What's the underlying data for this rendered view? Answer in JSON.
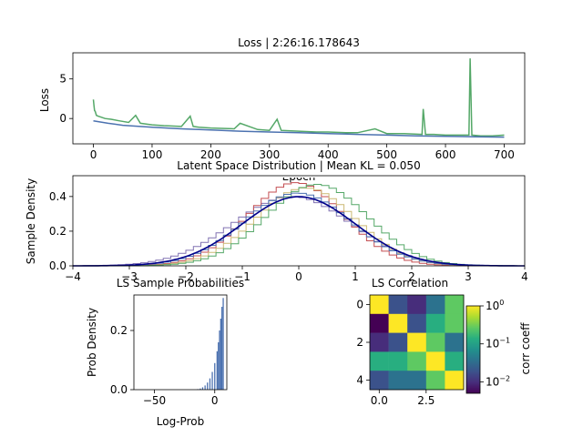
{
  "chart_data": [
    {
      "id": "loss",
      "type": "line",
      "title": "Loss | 2:26:16.178643",
      "xlabel": "Epoch",
      "ylabel": "Loss",
      "xlim": [
        -35,
        735
      ],
      "ylim": [
        -3.2,
        8.3
      ],
      "xticks": [
        0,
        100,
        200,
        300,
        400,
        500,
        600,
        700
      ],
      "yticks": [
        0,
        5
      ],
      "series": [
        {
          "color": "#55a868",
          "x": [
            0,
            1,
            2,
            3,
            5,
            8,
            12,
            20,
            30,
            45,
            60,
            72,
            80,
            100,
            120,
            150,
            165,
            170,
            180,
            200,
            240,
            250,
            280,
            300,
            313,
            320,
            350,
            380,
            400,
            430,
            450,
            480,
            500,
            530,
            560,
            562,
            566,
            580,
            600,
            620,
            640,
            642,
            645,
            660,
            680,
            700
          ],
          "y": [
            2.4,
            1.6,
            1.0,
            0.9,
            0.4,
            0.3,
            0.2,
            0.0,
            -0.1,
            -0.3,
            -0.5,
            0.4,
            -0.6,
            -0.8,
            -0.9,
            -1.0,
            0.3,
            -1.0,
            -1.1,
            -1.2,
            -1.3,
            -0.6,
            -1.4,
            -1.5,
            -0.1,
            -1.5,
            -1.6,
            -1.7,
            -1.7,
            -1.8,
            -1.8,
            -1.3,
            -1.9,
            -1.9,
            -2.0,
            1.2,
            -2.0,
            -2.0,
            -2.1,
            -2.1,
            -2.1,
            7.6,
            -2.1,
            -2.2,
            -2.2,
            -2.1
          ]
        },
        {
          "color": "#4c72b0",
          "x": [
            0,
            25,
            50,
            100,
            150,
            200,
            250,
            300,
            350,
            400,
            450,
            500,
            550,
            600,
            650,
            700
          ],
          "y": [
            -0.3,
            -0.6,
            -0.85,
            -1.1,
            -1.3,
            -1.45,
            -1.6,
            -1.7,
            -1.8,
            -1.9,
            -2.0,
            -2.1,
            -2.2,
            -2.25,
            -2.3,
            -2.35
          ]
        }
      ]
    },
    {
      "id": "latent",
      "type": "line",
      "title": "Latent Space Distribution | Mean KL = 0.050",
      "xlabel": "",
      "ylabel": "Sample Density",
      "xlim": [
        -4,
        4
      ],
      "ylim": [
        0,
        0.52
      ],
      "xticks": [
        -4,
        -3,
        -2,
        -1,
        0,
        1,
        2,
        3,
        4
      ],
      "yticks": [
        0.0,
        0.2,
        0.4
      ],
      "reference": {
        "color": "#00008b",
        "mean": 0,
        "std": 1
      },
      "series": [
        {
          "color": "#8172b2",
          "mean": -0.12,
          "std": 1.05,
          "peak": 0.4
        },
        {
          "color": "#c44e52",
          "mean": -0.05,
          "std": 0.85,
          "peak": 0.48
        },
        {
          "color": "#ccb974",
          "mean": 0.12,
          "std": 0.88,
          "peak": 0.45
        },
        {
          "color": "#55a868",
          "mean": 0.32,
          "std": 0.9,
          "peak": 0.47
        },
        {
          "color": "#4c72b0",
          "mean": -0.02,
          "std": 0.95,
          "peak": 0.42
        }
      ]
    },
    {
      "id": "probs",
      "type": "bar",
      "title": "LS Sample Probabilities",
      "xlabel": "Log-Prob",
      "ylabel": "Prob Density",
      "xlim": [
        -67,
        10
      ],
      "ylim": [
        0,
        0.32
      ],
      "xticks": [
        -50,
        0
      ],
      "yticks": [
        0.0,
        0.2
      ],
      "color": "#4c72b0",
      "x": [
        -14,
        -12,
        -10,
        -8,
        -6,
        -4,
        -2,
        0,
        2,
        3,
        4,
        5,
        6,
        7
      ],
      "values": [
        0.002,
        0.004,
        0.008,
        0.014,
        0.024,
        0.038,
        0.06,
        0.09,
        0.13,
        0.16,
        0.2,
        0.24,
        0.28,
        0.31
      ]
    },
    {
      "id": "corr",
      "type": "heatmap",
      "title": "LS Correlation",
      "xticks": [
        "0.0",
        "2.5"
      ],
      "xtick_positions": [
        0,
        2.5
      ],
      "yticks": [
        "0",
        "2",
        "4"
      ],
      "ytick_positions": [
        0,
        2,
        4
      ],
      "colorbar_label": "corr coeff",
      "colorbar_ticks": [
        "10",
        "10",
        "10"
      ],
      "colorbar_exponents": [
        "0",
        "−1",
        "−2"
      ],
      "colorbar_tick_values": [
        1,
        0.1,
        0.01
      ],
      "colorbar_range": [
        0.005,
        1
      ],
      "palette": [
        "#440154",
        "#472d7b",
        "#3b528b",
        "#2c728e",
        "#21918c",
        "#28ae80",
        "#5ec962",
        "#addc30",
        "#fde725"
      ],
      "matrix": [
        [
          1.0,
          0.02,
          0.01,
          0.03,
          0.2
        ],
        [
          0.006,
          1.0,
          0.02,
          0.15,
          0.2
        ],
        [
          0.01,
          0.02,
          1.0,
          0.3,
          0.03
        ],
        [
          0.1,
          0.1,
          0.3,
          1.0,
          0.15
        ],
        [
          0.02,
          0.05,
          0.05,
          0.2,
          1.0
        ]
      ]
    }
  ]
}
